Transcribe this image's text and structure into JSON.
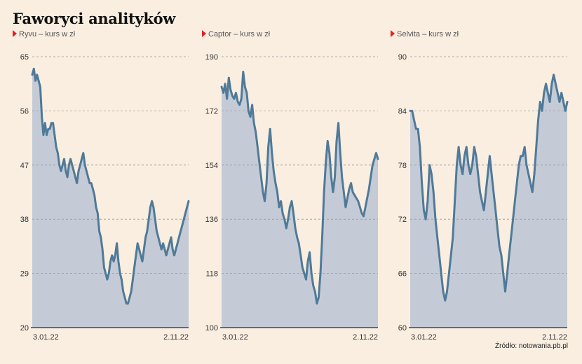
{
  "title": "Faworyci analityków",
  "source": "Źródło: notowania.pb.pl",
  "colors": {
    "background": "#faeee1",
    "area": "#c5cbd6",
    "line": "#4f7a98",
    "marker": "#e31e24",
    "grid": "#999999",
    "axis": "#444444"
  },
  "chart_data": [
    {
      "type": "area",
      "subtitle": "Ryvu – kurs w zł",
      "ylim": [
        20,
        65
      ],
      "yticks": [
        65,
        56,
        47,
        38,
        29,
        20
      ],
      "xticks": [
        "3.01.22",
        "2.11.22"
      ],
      "grid": true,
      "values": [
        62,
        63,
        61,
        62,
        61,
        60,
        55,
        52,
        54,
        52,
        53,
        53,
        54,
        54,
        52,
        50,
        49,
        47,
        46,
        47,
        48,
        46,
        45,
        47,
        48,
        47,
        46,
        45,
        44,
        46,
        47,
        48,
        49,
        47,
        46,
        45,
        44,
        44,
        43,
        42,
        40,
        39,
        36,
        35,
        33,
        30,
        29,
        28,
        29,
        31,
        32,
        31,
        32,
        34,
        31,
        29,
        28,
        26,
        25,
        24,
        24,
        25,
        26,
        28,
        30,
        32,
        34,
        33,
        32,
        31,
        33,
        35,
        36,
        38,
        40,
        41,
        40,
        38,
        36,
        35,
        34,
        33,
        34,
        33,
        32,
        33,
        34,
        35,
        33,
        32,
        33,
        34,
        35,
        36,
        37,
        38,
        39,
        40,
        41
      ]
    },
    {
      "type": "area",
      "subtitle": "Captor – kurs w zł",
      "ylim": [
        100,
        190
      ],
      "yticks": [
        190,
        172,
        154,
        136,
        118,
        100
      ],
      "xticks": [
        "3.01.22",
        "2.11.22"
      ],
      "grid": true,
      "values": [
        180,
        178,
        181,
        176,
        183,
        179,
        177,
        176,
        178,
        175,
        174,
        176,
        185,
        180,
        178,
        172,
        170,
        174,
        168,
        165,
        160,
        155,
        150,
        145,
        142,
        148,
        160,
        166,
        158,
        152,
        148,
        145,
        140,
        142,
        138,
        136,
        133,
        136,
        140,
        142,
        138,
        133,
        130,
        128,
        124,
        120,
        118,
        116,
        122,
        125,
        118,
        114,
        112,
        108,
        110,
        118,
        130,
        145,
        155,
        162,
        158,
        150,
        145,
        150,
        162,
        168,
        158,
        150,
        145,
        140,
        143,
        146,
        148,
        145,
        144,
        143,
        142,
        140,
        138,
        137,
        140,
        143,
        146,
        150,
        154,
        156,
        158,
        156
      ]
    },
    {
      "type": "area",
      "subtitle": "Selvita – kurs w zł",
      "ylim": [
        60,
        90
      ],
      "yticks": [
        90,
        84,
        78,
        72,
        66,
        60
      ],
      "xticks": [
        "3.01.22",
        "2.11.22"
      ],
      "grid": true,
      "values": [
        84,
        84,
        83,
        82,
        82,
        80,
        76,
        73,
        72,
        74,
        78,
        77,
        75,
        72,
        70,
        68,
        66,
        64,
        63,
        64,
        66,
        68,
        70,
        74,
        78,
        80,
        78,
        77,
        79,
        80,
        78,
        77,
        78,
        80,
        79,
        77,
        75,
        74,
        73,
        75,
        77,
        79,
        77,
        75,
        73,
        71,
        69,
        68,
        66,
        64,
        66,
        68,
        70,
        72,
        74,
        76,
        78,
        79,
        79,
        80,
        78,
        77,
        76,
        75,
        77,
        80,
        83,
        85,
        84,
        86,
        87,
        86,
        85,
        87,
        88,
        87,
        86,
        85,
        86,
        85,
        84,
        85
      ]
    }
  ]
}
